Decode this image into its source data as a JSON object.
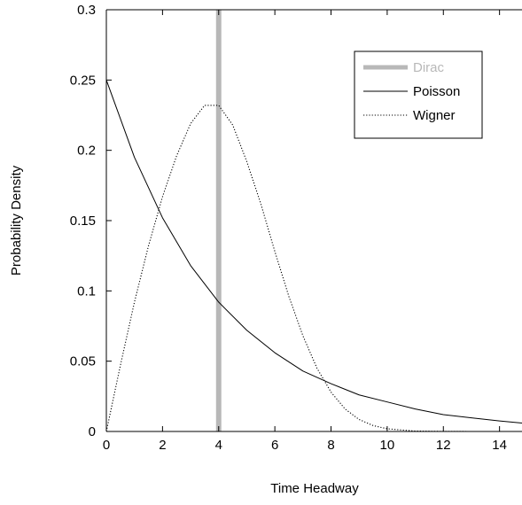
{
  "chart_data": {
    "type": "line",
    "title": "",
    "xlabel": "Time Headway",
    "ylabel": "Probability Density",
    "xlim": [
      0,
      14.8
    ],
    "ylim": [
      0,
      0.3
    ],
    "x_ticks": [
      0,
      2,
      4,
      6,
      8,
      10,
      12,
      14
    ],
    "x_tick_labels": [
      "0",
      "2",
      "4",
      "6",
      "8",
      "10",
      "12",
      "14"
    ],
    "y_ticks": [
      0,
      0.05,
      0.1,
      0.15,
      0.2,
      0.25,
      0.3
    ],
    "y_tick_labels": [
      "0",
      "0.05",
      "0.1",
      "0.15",
      "0.2",
      "0.25",
      "0.3"
    ],
    "grid": false,
    "legend_position": "top-right",
    "series": [
      {
        "name": "Dirac",
        "style": "thick-vertical",
        "color": "#b8b8b8",
        "x": [
          4,
          4
        ],
        "y": [
          0,
          0.3
        ]
      },
      {
        "name": "Poisson",
        "style": "solid",
        "color": "#000000",
        "x": [
          0,
          1,
          2,
          3,
          4,
          5,
          6,
          7,
          8,
          9,
          10,
          11,
          12,
          13,
          14,
          14.8
        ],
        "y": [
          0.25,
          0.195,
          0.152,
          0.118,
          0.092,
          0.072,
          0.056,
          0.043,
          0.034,
          0.026,
          0.021,
          0.016,
          0.012,
          0.0097,
          0.0075,
          0.006
        ]
      },
      {
        "name": "Wigner",
        "style": "dotted",
        "color": "#000000",
        "x": [
          0,
          0.5,
          1,
          1.5,
          2,
          2.5,
          3,
          3.5,
          4,
          4.5,
          5,
          5.5,
          6,
          6.5,
          7,
          7.5,
          8,
          8.5,
          9,
          9.5,
          10,
          11,
          12,
          13,
          14,
          14.8
        ],
        "y": [
          0,
          0.047,
          0.092,
          0.132,
          0.167,
          0.196,
          0.219,
          0.232,
          0.232,
          0.218,
          0.192,
          0.162,
          0.128,
          0.096,
          0.068,
          0.045,
          0.028,
          0.016,
          0.0085,
          0.0042,
          0.0019,
          0.0003,
          4e-05,
          0,
          0,
          0
        ]
      }
    ]
  }
}
